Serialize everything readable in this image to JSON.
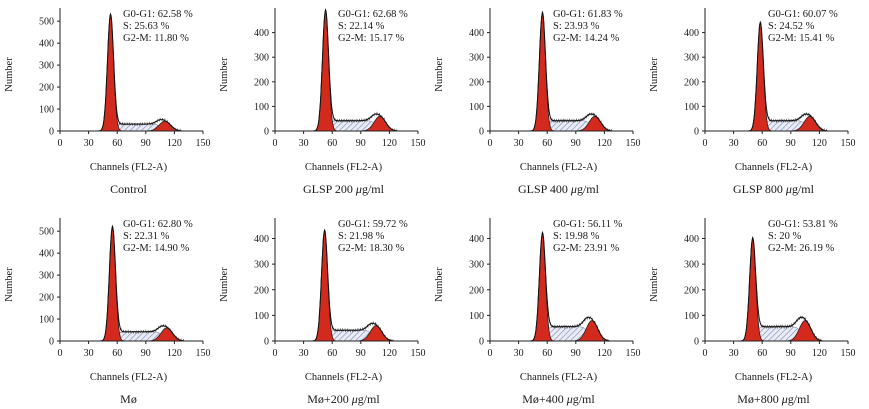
{
  "colors": {
    "g1_fill": "#d42a1e",
    "g2m_fill": "#d42a1e",
    "s_hatch": "#9aa3c4",
    "line": "#111111"
  },
  "chart_data": [
    {
      "type": "histogram",
      "title": "Control",
      "xlabel": "Channels (FL2-A)",
      "ylabel": "Number",
      "xlim": [
        0,
        150
      ],
      "ylim": [
        0,
        560
      ],
      "xticks": [
        0,
        30,
        60,
        90,
        120,
        150
      ],
      "yticks": [
        0,
        100,
        200,
        300,
        400,
        500
      ],
      "g1_peak": {
        "x": 53,
        "y": 530
      },
      "g2m_peak": {
        "x": 110,
        "y": 45
      },
      "stats": [
        "G0-G1: 62.58 %",
        "S: 25.63 %",
        "G2-M: 11.80 %"
      ]
    },
    {
      "type": "histogram",
      "title": "GLSP 200 μg/ml",
      "xlabel": "Channels (FL2-A)",
      "ylabel": "Number",
      "xlim": [
        0,
        150
      ],
      "ylim": [
        0,
        500
      ],
      "xticks": [
        0,
        30,
        60,
        90,
        120,
        150
      ],
      "yticks": [
        0,
        100,
        200,
        300,
        400
      ],
      "g1_peak": {
        "x": 53,
        "y": 490
      },
      "g2m_peak": {
        "x": 110,
        "y": 60
      },
      "stats": [
        "G0-G1: 62.68 %",
        "S: 22.14 %",
        "G2-M: 15.17 %"
      ]
    },
    {
      "type": "histogram",
      "title": "GLSP 400 μg/ml",
      "xlabel": "Channels (FL2-A)",
      "ylabel": "Number",
      "xlim": [
        0,
        150
      ],
      "ylim": [
        0,
        500
      ],
      "xticks": [
        0,
        30,
        60,
        90,
        120,
        150
      ],
      "yticks": [
        0,
        100,
        200,
        300,
        400
      ],
      "g1_peak": {
        "x": 55,
        "y": 480
      },
      "g2m_peak": {
        "x": 110,
        "y": 60
      },
      "stats": [
        "G0-G1: 61.83 %",
        "S: 23.93 %",
        "G2-M: 14.24 %"
      ]
    },
    {
      "type": "histogram",
      "title": "GLSP 800 μg/ml",
      "xlabel": "Channels (FL2-A)",
      "ylabel": "Number",
      "xlim": [
        0,
        150
      ],
      "ylim": [
        0,
        500
      ],
      "xticks": [
        0,
        30,
        60,
        90,
        120,
        150
      ],
      "yticks": [
        0,
        100,
        200,
        300,
        400
      ],
      "g1_peak": {
        "x": 58,
        "y": 440
      },
      "g2m_peak": {
        "x": 110,
        "y": 60
      },
      "stats": [
        "G0-G1: 60.07 %",
        "S: 24.52 %",
        "G2-M: 15.41 %"
      ]
    },
    {
      "type": "histogram",
      "title": "Mø",
      "xlabel": "Channels (FL2-A)",
      "ylabel": "Number",
      "xlim": [
        0,
        150
      ],
      "ylim": [
        0,
        560
      ],
      "xticks": [
        0,
        30,
        60,
        90,
        120,
        150
      ],
      "yticks": [
        0,
        100,
        200,
        300,
        400,
        500
      ],
      "g1_peak": {
        "x": 55,
        "y": 520
      },
      "g2m_peak": {
        "x": 112,
        "y": 60
      },
      "stats": [
        "G0-G1: 62.80 %",
        "S: 22.31 %",
        "G2-M: 14.90 %"
      ]
    },
    {
      "type": "histogram",
      "title": "Mø+200 μg/ml",
      "xlabel": "Channels (FL2-A)",
      "ylabel": "Number",
      "xlim": [
        0,
        150
      ],
      "ylim": [
        0,
        480
      ],
      "xticks": [
        0,
        30,
        60,
        90,
        120,
        150
      ],
      "yticks": [
        0,
        100,
        200,
        300,
        400
      ],
      "g1_peak": {
        "x": 52,
        "y": 430
      },
      "g2m_peak": {
        "x": 106,
        "y": 60
      },
      "stats": [
        "G0-G1: 59.72 %",
        "S: 21.98 %",
        "G2-M: 18.30 %"
      ]
    },
    {
      "type": "histogram",
      "title": "Mø+400 μg/ml",
      "xlabel": "Channels (FL2-A)",
      "ylabel": "Number",
      "xlim": [
        0,
        150
      ],
      "ylim": [
        0,
        480
      ],
      "xticks": [
        0,
        30,
        60,
        90,
        120,
        150
      ],
      "yticks": [
        0,
        100,
        200,
        300,
        400
      ],
      "g1_peak": {
        "x": 55,
        "y": 420
      },
      "g2m_peak": {
        "x": 107,
        "y": 80
      },
      "stats": [
        "G0-G1: 56.11 %",
        "S: 19.98 %",
        "G2-M: 23.91 %"
      ]
    },
    {
      "type": "histogram",
      "title": "Mø+800 μg/ml",
      "xlabel": "Channels (FL2-A)",
      "ylabel": "Number",
      "xlim": [
        0,
        150
      ],
      "ylim": [
        0,
        480
      ],
      "xticks": [
        0,
        30,
        60,
        90,
        120,
        150
      ],
      "yticks": [
        0,
        100,
        200,
        300,
        400
      ],
      "g1_peak": {
        "x": 50,
        "y": 400
      },
      "g2m_peak": {
        "x": 105,
        "y": 80
      },
      "stats": [
        "G0-G1: 53.81 %",
        "S: 20 %",
        "G2-M: 26.19 %"
      ]
    }
  ]
}
